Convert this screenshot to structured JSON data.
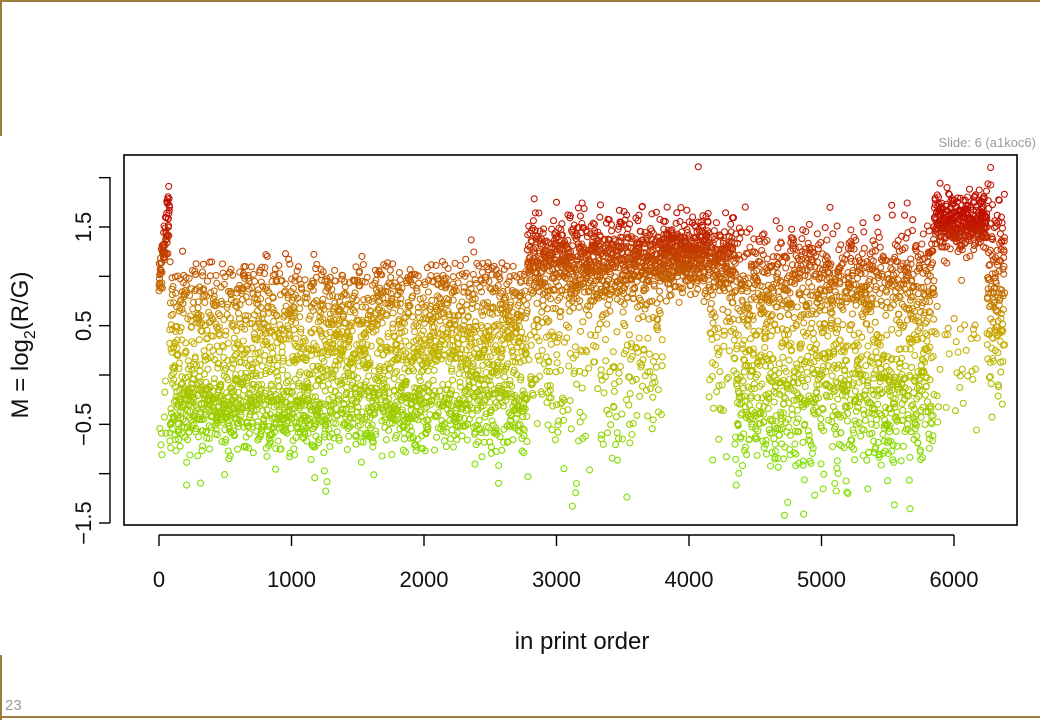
{
  "slide_label": "Slide: 6 (a1koc6)",
  "page_number": "23",
  "chart_data": {
    "type": "scatter",
    "title": "",
    "xlabel": "in print order",
    "ylabel_main": "M = log",
    "ylabel_sub": "2",
    "ylabel_rest": "(R/G)",
    "xlim": [
      -250,
      6600
    ],
    "ylim": [
      -1.5,
      2.2
    ],
    "x_ticks": [
      0,
      1000,
      2000,
      3000,
      4000,
      5000,
      6000
    ],
    "x_tick_labels": [
      "0",
      "1000",
      "2000",
      "3000",
      "4000",
      "5000",
      "6000"
    ],
    "y_ticks": [
      -1.5,
      -0.5,
      0.5,
      1.5
    ],
    "y_tick_labels": [
      "−1.5",
      "−0.5",
      "0.5",
      "1.5"
    ],
    "y_minor_ticks": [
      -1.0,
      0.0,
      1.0
    ],
    "grid": false,
    "legend": "none",
    "color_low": "#80e000",
    "color_high": "#c01000",
    "n_points": 6384,
    "segments": [
      {
        "x_range": [
          0,
          80
        ],
        "y_center": [
          0.9,
          1.7
        ],
        "spread": 0.12
      },
      {
        "x_range": [
          80,
          2780
        ],
        "y_center": -0.35,
        "spread": 0.3,
        "upper_band": 0.8
      },
      {
        "x_range": [
          2780,
          4350
        ],
        "y_center": 1.2,
        "spread": 0.22
      },
      {
        "x_range": [
          4350,
          5850
        ],
        "y_center": 0.5,
        "spread": 0.55
      },
      {
        "x_range": [
          5850,
          6250
        ],
        "y_center": 1.55,
        "spread": 0.15
      },
      {
        "x_range": [
          6250,
          6380
        ],
        "y_center": 0.6,
        "spread": 0.5
      }
    ],
    "outliers": [
      {
        "x": 4070,
        "y": 2.11
      },
      {
        "x": 3120,
        "y": -1.33
      },
      {
        "x": 5100,
        "y": -1.1
      },
      {
        "x": 3000,
        "y": 1.75
      },
      {
        "x": 5530,
        "y": 1.72
      },
      {
        "x": 3150,
        "y": -1.1
      }
    ]
  }
}
